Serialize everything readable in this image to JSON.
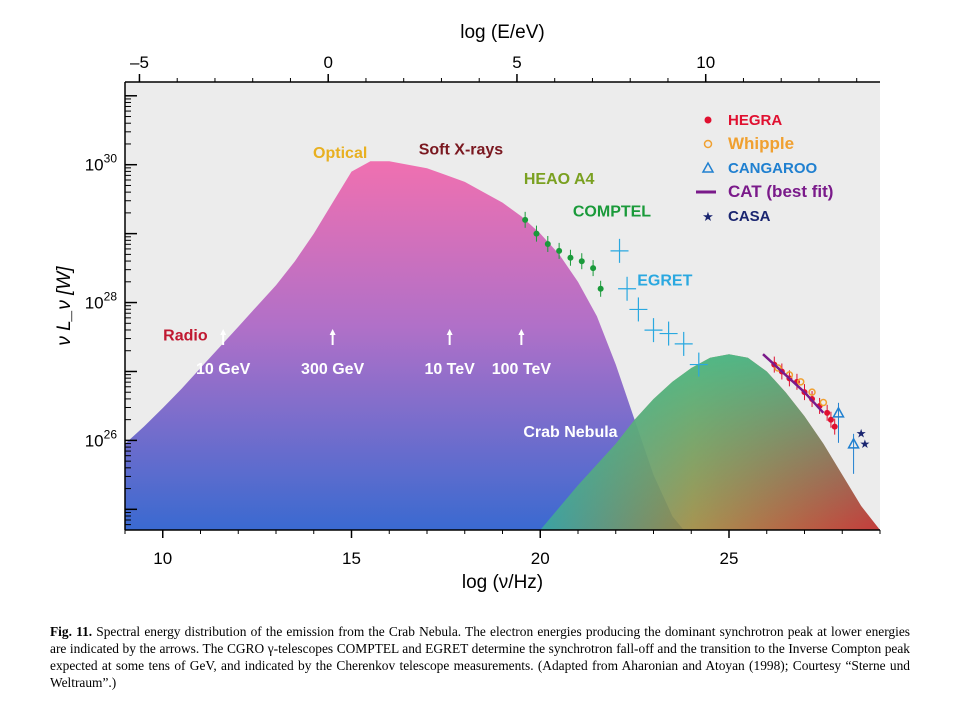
{
  "chart_data": {
    "type": "scatter",
    "xlabel": "log (ν/Hz)",
    "top_xlabel": "log (E/eV)",
    "ylabel": "ν L_ν [W]",
    "xlim": [
      9,
      29
    ],
    "ylim": [
      24.7,
      31.2
    ],
    "yscale": "log",
    "x_ticks": [
      "10",
      "15",
      "20",
      "25"
    ],
    "x_tick_values": [
      10,
      15,
      20,
      25
    ],
    "top_ticks": [
      "–5",
      "0",
      "5",
      "10"
    ],
    "top_tick_values": [
      -5,
      0,
      5,
      10
    ],
    "y_ticks": [
      {
        "base": "10",
        "exp": "26",
        "value": 26
      },
      {
        "base": "10",
        "exp": "28",
        "value": 28
      },
      {
        "base": "10",
        "exp": "30",
        "value": 30
      }
    ],
    "synchrotron_curve": {
      "x": [
        9.0,
        9.5,
        10.0,
        10.5,
        11.0,
        11.5,
        12.0,
        12.5,
        13.0,
        13.5,
        14.0,
        14.5,
        15.0,
        15.5,
        16.0,
        16.5,
        17.0,
        17.5,
        18.0,
        18.5,
        19.0,
        19.5,
        20.0,
        20.5,
        21.0,
        21.5,
        22.0,
        22.5,
        23.0,
        23.5,
        23.8
      ],
      "y": [
        25.95,
        26.2,
        26.47,
        26.75,
        27.05,
        27.35,
        27.65,
        27.95,
        28.25,
        28.6,
        29.0,
        29.45,
        29.9,
        30.05,
        30.05,
        30.0,
        29.95,
        29.85,
        29.75,
        29.6,
        29.45,
        29.25,
        29.0,
        28.7,
        28.3,
        27.8,
        27.1,
        26.3,
        25.5,
        24.9,
        24.7
      ]
    },
    "inverse_compton_curve": {
      "x": [
        20.0,
        21.0,
        22.0,
        22.5,
        23.0,
        23.5,
        24.0,
        24.5,
        25.0,
        25.5,
        26.0,
        26.5,
        27.0,
        27.5,
        28.0,
        28.5,
        29.0
      ],
      "y": [
        24.7,
        25.35,
        25.95,
        26.3,
        26.6,
        26.85,
        27.05,
        27.2,
        27.25,
        27.2,
        27.0,
        26.7,
        26.35,
        25.95,
        25.5,
        25.05,
        24.7
      ]
    },
    "series": [
      {
        "name": "HEGRA",
        "marker": "dot",
        "color": "#e01030",
        "x": [
          26.2,
          26.4,
          26.6,
          26.8,
          27.0,
          27.2,
          27.4,
          27.6,
          27.7,
          27.8
        ],
        "y": [
          27.1,
          27.0,
          26.9,
          26.85,
          26.7,
          26.6,
          26.5,
          26.4,
          26.3,
          26.2
        ]
      },
      {
        "name": "Whipple",
        "marker": "circle-open",
        "color": "#f0a030",
        "x": [
          26.3,
          26.6,
          26.9,
          27.2,
          27.5
        ],
        "y": [
          27.05,
          26.95,
          26.85,
          26.7,
          26.55
        ]
      },
      {
        "name": "CANGAROO",
        "marker": "triangle-open",
        "color": "#2080d0",
        "x": [
          27.9,
          28.3
        ],
        "y": [
          26.4,
          25.95
        ]
      },
      {
        "name": "CAT (best fit)",
        "marker": "line",
        "color": "#7a1a8a",
        "x": [
          25.9,
          26.5,
          27.0,
          27.5
        ],
        "y": [
          27.25,
          26.95,
          26.7,
          26.4
        ]
      },
      {
        "name": "CASA",
        "marker": "star",
        "color": "#1a2570",
        "x": [
          28.5,
          28.6
        ],
        "y": [
          26.1,
          25.95
        ]
      },
      {
        "name": "COMPTEL",
        "marker": "dot",
        "color": "#1a9a3a",
        "x": [
          19.6,
          19.9,
          20.2,
          20.5,
          20.8,
          21.1,
          21.4,
          21.6
        ],
        "y": [
          29.2,
          29.0,
          28.85,
          28.75,
          28.65,
          28.6,
          28.5,
          28.2
        ]
      },
      {
        "name": "EGRET",
        "marker": "cross",
        "color": "#2aa8e0",
        "x": [
          22.1,
          22.3,
          22.6,
          23.0,
          23.4,
          23.8,
          24.2
        ],
        "y": [
          28.75,
          28.2,
          27.9,
          27.6,
          27.55,
          27.4,
          27.1
        ]
      }
    ],
    "annotations": [
      {
        "text": "Radio",
        "color": "#c01830",
        "x": 10.6,
        "y": 27.45
      },
      {
        "text": "Optical",
        "color": "#e8b020",
        "x": 14.7,
        "y": 30.1
      },
      {
        "text": "Soft X-rays",
        "color": "#7a1820",
        "x": 17.9,
        "y": 30.15
      },
      {
        "text": "HEAO A4",
        "color": "#7aa020",
        "x": 20.5,
        "y": 29.72
      },
      {
        "text": "COMPTEL",
        "color": "#1a9a3a",
        "x": 21.9,
        "y": 29.25
      },
      {
        "text": "EGRET",
        "color": "#2aa8e0",
        "x": 23.3,
        "y": 28.25
      },
      {
        "text": "Crab Nebula",
        "color": "#ffffff",
        "x": 20.8,
        "y": 26.05
      }
    ],
    "arrows": [
      {
        "label": "10 GeV",
        "x": 11.6
      },
      {
        "label": "300 GeV",
        "x": 14.5
      },
      {
        "label": "10 TeV",
        "x": 17.6
      },
      {
        "label": "100 TeV",
        "x": 19.5
      }
    ],
    "legend_position": "top-right",
    "grid": false
  },
  "caption": {
    "label": "Fig. 11.",
    "text": "Spectral energy distribution of the emission from the Crab Nebula. The electron energies producing the dominant synchrotron peak at lower energies are indicated by the arrows. The CGRO γ-telescopes COMPTEL and EGRET determine the synchrotron fall-off and the transition to the Inverse Compton peak expected at some tens of GeV, and indicated by the Cherenkov telescope measurements. (Adapted from Aharonian and Atoyan (1998); Courtesy “Sterne und Weltraum”.)"
  }
}
